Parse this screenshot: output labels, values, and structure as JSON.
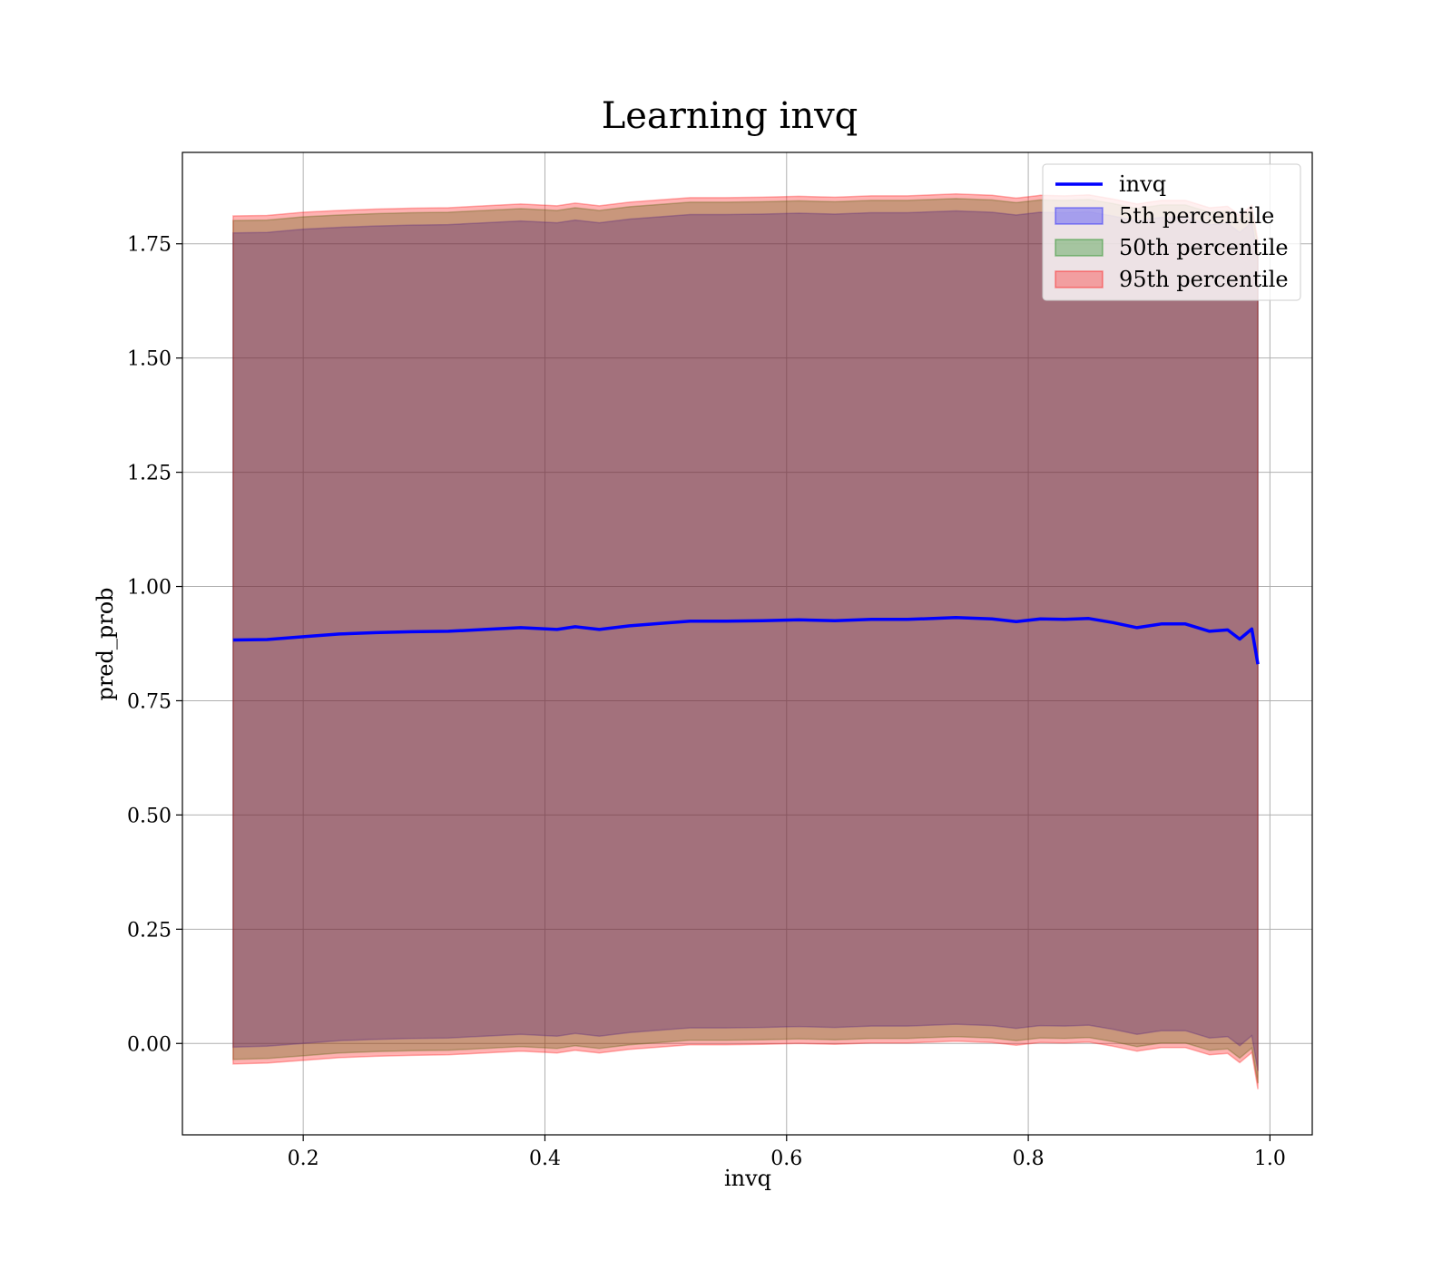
{
  "chart_data": {
    "type": "area",
    "title": "Learning invq",
    "xlabel": "invq",
    "ylabel": "pred_prob",
    "xlim": [
      0.1,
      1.035
    ],
    "ylim": [
      -0.2,
      1.95
    ],
    "grid": true,
    "legend_position": "top-right",
    "x_ticks": [
      0.2,
      0.4,
      0.6,
      0.8,
      1.0
    ],
    "x_tick_labels": [
      "0.2",
      "0.4",
      "0.6",
      "0.8",
      "1.0"
    ],
    "y_ticks": [
      0.0,
      0.25,
      0.5,
      0.75,
      1.0,
      1.25,
      1.5,
      1.75
    ],
    "y_tick_labels": [
      "0.00",
      "0.25",
      "0.50",
      "0.75",
      "1.00",
      "1.25",
      "1.50",
      "1.75"
    ],
    "x": [
      0.142,
      0.17,
      0.2,
      0.23,
      0.26,
      0.29,
      0.32,
      0.35,
      0.38,
      0.41,
      0.425,
      0.445,
      0.47,
      0.5,
      0.52,
      0.55,
      0.58,
      0.61,
      0.64,
      0.67,
      0.7,
      0.74,
      0.77,
      0.79,
      0.81,
      0.83,
      0.85,
      0.87,
      0.89,
      0.9,
      0.91,
      0.93,
      0.95,
      0.965,
      0.975,
      0.985,
      0.99
    ],
    "series": [
      {
        "name": "invq",
        "role": "line",
        "color": "#0000ff",
        "values": [
          0.883,
          0.884,
          0.89,
          0.896,
          0.899,
          0.901,
          0.902,
          0.906,
          0.91,
          0.906,
          0.912,
          0.906,
          0.914,
          0.92,
          0.924,
          0.924,
          0.925,
          0.927,
          0.925,
          0.928,
          0.928,
          0.932,
          0.929,
          0.923,
          0.929,
          0.928,
          0.93,
          0.921,
          0.91,
          0.914,
          0.918,
          0.918,
          0.902,
          0.905,
          0.885,
          0.907,
          0.83
        ]
      },
      {
        "name": "5th percentile",
        "role": "band",
        "color": "#0000ff",
        "lower": [
          -0.008,
          -0.006,
          0.0,
          0.006,
          0.009,
          0.011,
          0.012,
          0.016,
          0.02,
          0.016,
          0.022,
          0.016,
          0.024,
          0.03,
          0.034,
          0.034,
          0.035,
          0.037,
          0.035,
          0.038,
          0.038,
          0.042,
          0.039,
          0.033,
          0.039,
          0.038,
          0.04,
          0.031,
          0.02,
          0.024,
          0.028,
          0.028,
          0.012,
          0.015,
          -0.005,
          0.017,
          -0.06
        ],
        "upper": [
          1.774,
          1.775,
          1.782,
          1.786,
          1.789,
          1.791,
          1.792,
          1.796,
          1.8,
          1.796,
          1.802,
          1.796,
          1.804,
          1.81,
          1.814,
          1.814,
          1.815,
          1.817,
          1.815,
          1.818,
          1.818,
          1.822,
          1.819,
          1.813,
          1.819,
          1.818,
          1.82,
          1.811,
          1.8,
          1.804,
          1.808,
          1.808,
          1.792,
          1.795,
          1.775,
          1.797,
          1.72
        ]
      },
      {
        "name": "50th percentile",
        "role": "band",
        "color": "#008000",
        "lower": [
          -0.035,
          -0.033,
          -0.027,
          -0.021,
          -0.018,
          -0.016,
          -0.015,
          -0.011,
          -0.007,
          -0.011,
          -0.005,
          -0.011,
          -0.003,
          0.003,
          0.007,
          0.007,
          0.008,
          0.01,
          0.008,
          0.011,
          0.011,
          0.015,
          0.012,
          0.006,
          0.012,
          0.011,
          0.013,
          0.004,
          -0.007,
          -0.003,
          0.001,
          0.001,
          -0.015,
          -0.012,
          -0.032,
          -0.01,
          -0.087
        ],
        "upper": [
          1.801,
          1.802,
          1.809,
          1.813,
          1.816,
          1.818,
          1.819,
          1.823,
          1.827,
          1.823,
          1.829,
          1.823,
          1.831,
          1.837,
          1.841,
          1.841,
          1.842,
          1.844,
          1.842,
          1.845,
          1.845,
          1.849,
          1.846,
          1.84,
          1.846,
          1.845,
          1.847,
          1.838,
          1.827,
          1.831,
          1.835,
          1.835,
          1.819,
          1.822,
          1.802,
          1.824,
          1.747
        ]
      },
      {
        "name": "95th percentile",
        "role": "band",
        "color": "#ff0000",
        "lower": [
          -0.045,
          -0.043,
          -0.037,
          -0.031,
          -0.028,
          -0.026,
          -0.025,
          -0.021,
          -0.017,
          -0.021,
          -0.015,
          -0.021,
          -0.013,
          -0.007,
          -0.003,
          -0.003,
          -0.002,
          0.0,
          -0.002,
          0.001,
          0.001,
          0.005,
          0.002,
          -0.004,
          0.002,
          0.001,
          0.003,
          -0.006,
          -0.017,
          -0.013,
          -0.009,
          -0.009,
          -0.025,
          -0.022,
          -0.042,
          -0.02,
          -0.1
        ],
        "upper": [
          1.811,
          1.812,
          1.819,
          1.823,
          1.826,
          1.828,
          1.829,
          1.833,
          1.837,
          1.833,
          1.839,
          1.833,
          1.841,
          1.847,
          1.851,
          1.851,
          1.852,
          1.854,
          1.852,
          1.855,
          1.855,
          1.859,
          1.856,
          1.85,
          1.856,
          1.855,
          1.857,
          1.848,
          1.837,
          1.841,
          1.845,
          1.845,
          1.829,
          1.832,
          1.812,
          1.834,
          1.757
        ]
      }
    ],
    "legend": [
      "invq",
      "5th percentile",
      "50th percentile",
      "95th percentile"
    ]
  }
}
